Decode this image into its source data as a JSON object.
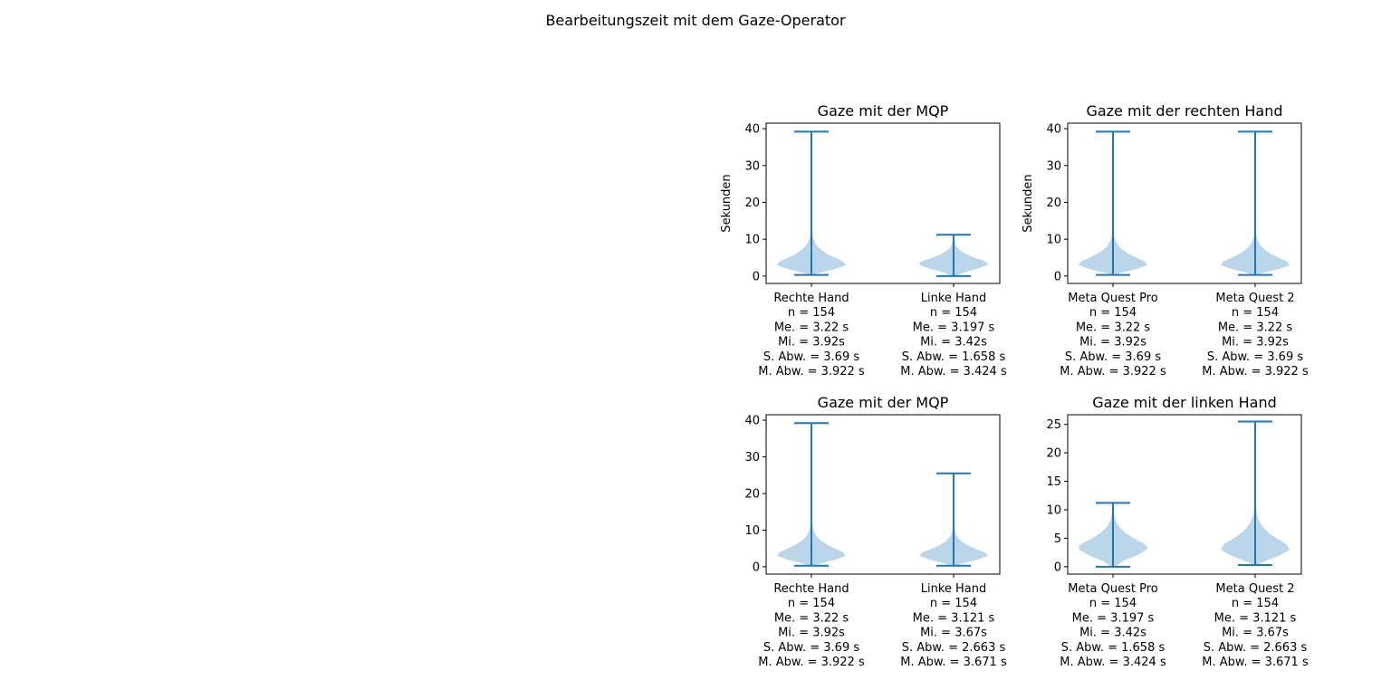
{
  "figure": {
    "suptitle": "Bearbeitungszeit mit dem Gaze-Operator"
  },
  "colors": {
    "line": "#1f77b4",
    "body": "#1f77b4",
    "body_opacity": 0.3,
    "axis": "#000000"
  },
  "chart_data": [
    {
      "type": "violin",
      "title": "Gaze mit der MQP",
      "ylabel": "Sekunden",
      "ylim": [
        -2,
        41.5
      ],
      "yticks": [
        0,
        10,
        20,
        30,
        40
      ],
      "categories": [
        "Rechte Hand\nn = 154\nMe. = 3.22 s\nMi. = 3.92s\nS. Abw. = 3.69 s\nM. Abw. = 3.922 s",
        "Linke Hand\nn = 154\nMe. = 3.197 s\nMi. = 3.42s\nS. Abw. = 1.658 s\nM. Abw. = 3.424 s"
      ],
      "series": [
        {
          "min": 0.3,
          "max": 39.2,
          "profile": [
            [
              0.3,
              0.03
            ],
            [
              1,
              0.3
            ],
            [
              2,
              0.72
            ],
            [
              3,
              1.0
            ],
            [
              4,
              0.92
            ],
            [
              5,
              0.68
            ],
            [
              6,
              0.46
            ],
            [
              7,
              0.3
            ],
            [
              8,
              0.18
            ],
            [
              9,
              0.11
            ],
            [
              10,
              0.06
            ],
            [
              11,
              0.035
            ],
            [
              13,
              0.018
            ],
            [
              16,
              0.01
            ],
            [
              20,
              0.006
            ],
            [
              39.2,
              0.004
            ]
          ]
        },
        {
          "min": 0.0,
          "max": 11.2,
          "profile": [
            [
              0,
              0.05
            ],
            [
              1,
              0.3
            ],
            [
              2,
              0.7
            ],
            [
              3,
              0.98
            ],
            [
              3.5,
              1.0
            ],
            [
              4,
              0.92
            ],
            [
              5,
              0.6
            ],
            [
              6,
              0.35
            ],
            [
              7,
              0.18
            ],
            [
              8,
              0.08
            ],
            [
              9,
              0.04
            ],
            [
              10,
              0.02
            ],
            [
              11.2,
              0.01
            ]
          ]
        }
      ]
    },
    {
      "type": "violin",
      "title": "Gaze mit der rechten Hand",
      "ylabel": "Sekunden",
      "ylim": [
        -2,
        41.5
      ],
      "yticks": [
        0,
        10,
        20,
        30,
        40
      ],
      "categories": [
        "Meta Quest Pro\nn = 154\nMe. = 3.22 s\nMi. = 3.92s\nS. Abw. = 3.69 s\nM. Abw. = 3.922 s",
        "Meta Quest 2\nn = 154\nMe. = 3.22 s\nMi. = 3.92s\nS. Abw. = 3.69 s\nM. Abw. = 3.922 s"
      ],
      "series": [
        {
          "min": 0.3,
          "max": 39.2,
          "profile": [
            [
              0.3,
              0.03
            ],
            [
              1,
              0.3
            ],
            [
              2,
              0.72
            ],
            [
              3,
              1.0
            ],
            [
              4,
              0.92
            ],
            [
              5,
              0.68
            ],
            [
              6,
              0.46
            ],
            [
              7,
              0.3
            ],
            [
              8,
              0.18
            ],
            [
              9,
              0.11
            ],
            [
              10,
              0.06
            ],
            [
              11,
              0.035
            ],
            [
              13,
              0.018
            ],
            [
              16,
              0.01
            ],
            [
              20,
              0.006
            ],
            [
              39.2,
              0.004
            ]
          ]
        },
        {
          "min": 0.3,
          "max": 39.2,
          "profile": [
            [
              0.3,
              0.03
            ],
            [
              1,
              0.3
            ],
            [
              2,
              0.72
            ],
            [
              3,
              1.0
            ],
            [
              4,
              0.92
            ],
            [
              5,
              0.68
            ],
            [
              6,
              0.46
            ],
            [
              7,
              0.3
            ],
            [
              8,
              0.18
            ],
            [
              9,
              0.11
            ],
            [
              10,
              0.06
            ],
            [
              11,
              0.035
            ],
            [
              13,
              0.018
            ],
            [
              16,
              0.01
            ],
            [
              20,
              0.006
            ],
            [
              39.2,
              0.004
            ]
          ]
        }
      ]
    },
    {
      "type": "violin",
      "title": "Gaze mit der MQP",
      "ylabel": "",
      "ylim": [
        -2,
        41.5
      ],
      "yticks": [
        0,
        10,
        20,
        30,
        40
      ],
      "categories": [
        "Rechte Hand\nn = 154\nMe. = 3.22 s\nMi. = 3.92s\nS. Abw. = 3.69 s\nM. Abw. = 3.922 s",
        "Linke Hand\nn = 154\nMe. = 3.121 s\nMi. = 3.67s\nS. Abw. = 2.663 s\nM. Abw. = 3.671 s"
      ],
      "series": [
        {
          "min": 0.3,
          "max": 39.2,
          "profile": [
            [
              0.3,
              0.03
            ],
            [
              1,
              0.3
            ],
            [
              2,
              0.72
            ],
            [
              3,
              1.0
            ],
            [
              4,
              0.92
            ],
            [
              5,
              0.68
            ],
            [
              6,
              0.46
            ],
            [
              7,
              0.3
            ],
            [
              8,
              0.18
            ],
            [
              9,
              0.11
            ],
            [
              10,
              0.06
            ],
            [
              11,
              0.035
            ],
            [
              13,
              0.018
            ],
            [
              16,
              0.01
            ],
            [
              20,
              0.006
            ],
            [
              39.2,
              0.004
            ]
          ]
        },
        {
          "min": 0.3,
          "max": 25.5,
          "profile": [
            [
              0.3,
              0.04
            ],
            [
              1,
              0.3
            ],
            [
              2,
              0.72
            ],
            [
              3,
              1.0
            ],
            [
              4,
              0.9
            ],
            [
              5,
              0.62
            ],
            [
              6,
              0.38
            ],
            [
              7,
              0.22
            ],
            [
              8,
              0.12
            ],
            [
              9,
              0.06
            ],
            [
              10,
              0.035
            ],
            [
              12,
              0.015
            ],
            [
              15,
              0.008
            ],
            [
              25.5,
              0.005
            ]
          ]
        }
      ]
    },
    {
      "type": "violin",
      "title": "Gaze mit der linken Hand",
      "ylabel": "",
      "ylim": [
        -1.3,
        26.7
      ],
      "yticks": [
        0,
        5,
        10,
        15,
        20,
        25
      ],
      "categories": [
        "Meta Quest Pro\nn = 154\nMe. = 3.197 s\nMi. = 3.42s\nS. Abw. = 1.658 s\nM. Abw. = 3.424 s",
        "Meta Quest 2\nn = 154\nMe. = 3.121 s\nMi. = 3.67s\nS. Abw. = 2.663 s\nM. Abw. = 3.671 s"
      ],
      "series": [
        {
          "min": 0.0,
          "max": 11.2,
          "profile": [
            [
              0,
              0.05
            ],
            [
              1,
              0.3
            ],
            [
              2,
              0.7
            ],
            [
              3,
              0.98
            ],
            [
              3.5,
              1.0
            ],
            [
              4,
              0.92
            ],
            [
              5,
              0.6
            ],
            [
              6,
              0.35
            ],
            [
              7,
              0.18
            ],
            [
              8,
              0.08
            ],
            [
              9,
              0.04
            ],
            [
              10,
              0.02
            ],
            [
              11.2,
              0.01
            ]
          ]
        },
        {
          "min": 0.3,
          "max": 25.5,
          "profile": [
            [
              0.3,
              0.04
            ],
            [
              1,
              0.3
            ],
            [
              2,
              0.72
            ],
            [
              3,
              1.0
            ],
            [
              4,
              0.9
            ],
            [
              5,
              0.62
            ],
            [
              6,
              0.38
            ],
            [
              7,
              0.22
            ],
            [
              8,
              0.12
            ],
            [
              9,
              0.06
            ],
            [
              10,
              0.035
            ],
            [
              12,
              0.015
            ],
            [
              15,
              0.008
            ],
            [
              25.5,
              0.005
            ]
          ]
        }
      ]
    }
  ]
}
